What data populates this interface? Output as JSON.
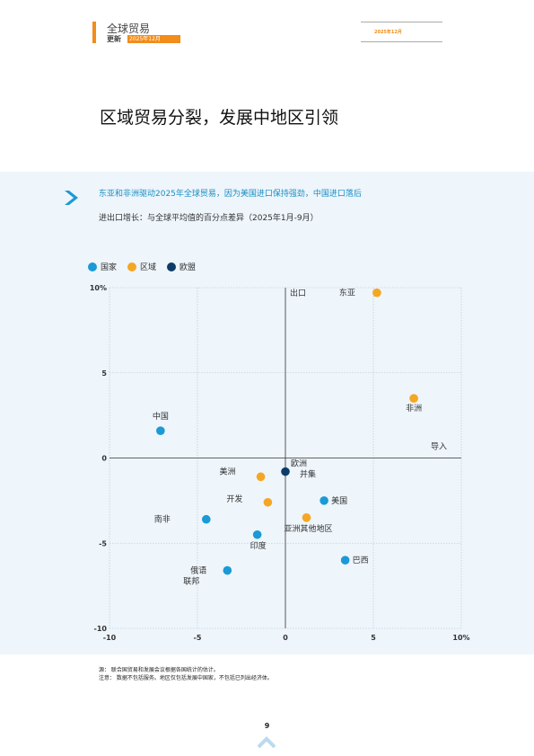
{
  "header": {
    "title": "全球贸易",
    "subtitle": "更新",
    "subtitle_tag": "2025年12月",
    "date": "2025年12月"
  },
  "page_title": "区域贸易分裂，发展中地区引领",
  "chart_section": {
    "subtitle": "东亚和非洲驱动2025年全球贸易，因为美国进口保持强劲，中国进口落后",
    "axis_description": "进出口增长：与全球平均值的百分点差异（2025年1月-9月）"
  },
  "legend": [
    {
      "label": "国家",
      "color": "#1a9ad6"
    },
    {
      "label": "区域",
      "color": "#f5a623"
    },
    {
      "label": "欧盟",
      "color": "#0d3d66"
    }
  ],
  "chart_data": {
    "type": "scatter",
    "xlim": [
      -10,
      10
    ],
    "ylim": [
      -10,
      10
    ],
    "xticks": [
      "-10",
      "-5",
      "0",
      "5",
      "10%"
    ],
    "yticks": [
      "-10",
      "-5",
      "0",
      "5",
      "10%"
    ],
    "xlabel": "导入",
    "ylabel": "出口",
    "grid": true,
    "legend_position": "top-left",
    "points": [
      {
        "label": "东亚",
        "group": "区域",
        "x": 5.2,
        "y": 9.7
      },
      {
        "label": "非洲",
        "group": "区域",
        "x": 7.3,
        "y": 3.5
      },
      {
        "label": "中国",
        "group": "国家",
        "x": -7.1,
        "y": 1.6
      },
      {
        "label": "欧洲并集",
        "group": "欧盟",
        "x": 0.0,
        "y": -0.8
      },
      {
        "label": "美洲",
        "group": "区域",
        "x": -1.4,
        "y": -1.1
      },
      {
        "label": "开发",
        "group": "区域",
        "x": -1.0,
        "y": -2.6
      },
      {
        "label": "美国",
        "group": "国家",
        "x": 2.2,
        "y": -2.5
      },
      {
        "label": "南非",
        "group": "国家",
        "x": -4.5,
        "y": -3.6
      },
      {
        "label": "亚洲其他地区",
        "group": "区域",
        "x": 1.2,
        "y": -3.5
      },
      {
        "label": "印度",
        "group": "国家",
        "x": -1.6,
        "y": -4.5
      },
      {
        "label": "巴西",
        "group": "国家",
        "x": 3.4,
        "y": -6.0
      },
      {
        "label": "俄语联邦",
        "group": "国家",
        "x": -3.3,
        "y": -6.6
      }
    ]
  },
  "footnotes": {
    "source": "源： 联合国贸易和发展会议根据各国统计的估计。",
    "note": "注意： 数据不包括服务。地区仅包括发展中国家，不包括已列出经济体。"
  },
  "page_number": "9"
}
